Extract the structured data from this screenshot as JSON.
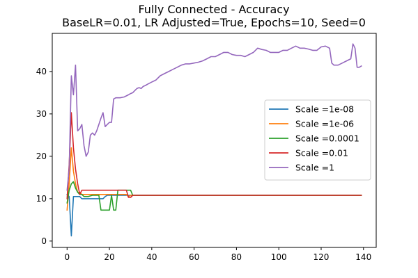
{
  "chart_data": {
    "type": "line",
    "title": "Fully Connected - Accuracy",
    "subtitle": "BaseLR=0.01, LR Adjusted=True, Epochs=10, Seed=0",
    "xlabel": "",
    "ylabel": "",
    "xlim": [
      -7,
      146
    ],
    "ylim": [
      -1.5,
      49
    ],
    "xticks": [
      0,
      20,
      40,
      60,
      80,
      100,
      120,
      140
    ],
    "yticks": [
      0,
      10,
      20,
      30,
      40
    ],
    "grid": false,
    "legend_position": "center-right",
    "series": [
      {
        "name": "Scale =1e-08",
        "color": "#1f77b4",
        "x": [
          0,
          1,
          2,
          3,
          4,
          5,
          6,
          7,
          8,
          10,
          12,
          14,
          16,
          17,
          18,
          19,
          20,
          22,
          24,
          26,
          28,
          30,
          40,
          60,
          80,
          100,
          120,
          139
        ],
        "y": [
          11,
          10.5,
          1.2,
          10.5,
          10.5,
          10.5,
          10.5,
          10.0,
          10.0,
          10.0,
          10.0,
          10.0,
          10.0,
          10.0,
          10.5,
          10.8,
          10.8,
          10.8,
          10.8,
          10.8,
          10.8,
          10.8,
          10.8,
          10.8,
          10.8,
          10.8,
          10.8,
          10.8
        ]
      },
      {
        "name": "Scale =1e-06",
        "color": "#ff7f0e",
        "x": [
          0,
          1,
          2,
          3,
          4,
          5,
          6,
          7,
          8,
          10,
          12,
          14,
          16,
          18,
          20,
          22,
          24,
          26,
          28,
          29,
          30,
          40,
          60,
          80,
          100,
          120,
          139
        ],
        "y": [
          7.3,
          13.5,
          22.0,
          16.5,
          13.5,
          11.5,
          11.5,
          11.0,
          11.0,
          11.0,
          11.0,
          11.0,
          11.0,
          11.0,
          11.0,
          11.0,
          11.0,
          11.0,
          11.0,
          10.5,
          10.8,
          10.8,
          10.8,
          10.8,
          10.8,
          10.8,
          10.8
        ]
      },
      {
        "name": "Scale =0.0001",
        "color": "#2ca02c",
        "x": [
          0,
          1,
          2,
          3,
          4,
          5,
          6,
          7,
          8,
          10,
          12,
          14,
          15,
          16,
          18,
          19,
          20,
          21,
          22,
          23,
          24,
          25,
          26,
          28,
          29,
          30,
          31,
          40,
          60,
          80,
          100,
          120,
          139
        ],
        "y": [
          9.0,
          12.0,
          13.5,
          14.0,
          12.5,
          11.5,
          11.0,
          11.0,
          10.5,
          10.5,
          10.8,
          10.8,
          10.8,
          7.3,
          7.3,
          7.3,
          7.3,
          10.8,
          7.3,
          7.3,
          12.0,
          12.0,
          12.0,
          12.0,
          12.0,
          12.0,
          10.8,
          10.8,
          10.8,
          10.8,
          10.8,
          10.8,
          10.8
        ]
      },
      {
        "name": "Scale =0.01",
        "color": "#d62728",
        "x": [
          0,
          1,
          2,
          3,
          4,
          5,
          6,
          7,
          8,
          10,
          12,
          14,
          16,
          18,
          20,
          22,
          24,
          26,
          28,
          29,
          30,
          31,
          40,
          60,
          80,
          100,
          120,
          139
        ],
        "y": [
          10.0,
          18.0,
          30.3,
          22.0,
          17.0,
          13.5,
          11.0,
          12.0,
          12.0,
          12.0,
          12.0,
          12.0,
          12.0,
          12.0,
          12.0,
          12.0,
          12.0,
          12.0,
          12.0,
          10.3,
          10.3,
          10.8,
          10.8,
          10.8,
          10.8,
          10.8,
          10.8,
          10.8
        ]
      },
      {
        "name": "Scale =1",
        "color": "#9467bd",
        "x": [
          0,
          1,
          2,
          3,
          4,
          5,
          6,
          7,
          8,
          9,
          10,
          11,
          12,
          13,
          14,
          15,
          16,
          17,
          18,
          19,
          20,
          21,
          22,
          23,
          24,
          25,
          27,
          29,
          30,
          31,
          32,
          33,
          34,
          35,
          36,
          37,
          38,
          40,
          42,
          44,
          46,
          48,
          50,
          52,
          54,
          56,
          58,
          60,
          62,
          64,
          66,
          68,
          70,
          72,
          74,
          76,
          78,
          80,
          82,
          84,
          86,
          88,
          90,
          92,
          94,
          96,
          98,
          100,
          102,
          104,
          106,
          108,
          110,
          112,
          114,
          116,
          118,
          120,
          122,
          124,
          125,
          126,
          127,
          128,
          130,
          132,
          134,
          135,
          136,
          137,
          138,
          139
        ],
        "y": [
          12.0,
          17.0,
          39.0,
          34.5,
          41.5,
          26.0,
          26.5,
          27.5,
          22.5,
          20.0,
          21.0,
          25.0,
          25.5,
          25.0,
          26.0,
          27.5,
          29.0,
          30.3,
          27.0,
          27.5,
          28.0,
          28.0,
          33.5,
          33.8,
          33.8,
          33.8,
          34.0,
          34.5,
          34.8,
          35.0,
          35.5,
          36.0,
          36.2,
          36.0,
          36.5,
          36.7,
          37.0,
          37.5,
          38.0,
          39.0,
          39.5,
          40.0,
          40.5,
          41.0,
          41.5,
          41.8,
          41.8,
          42.0,
          42.2,
          42.5,
          43.0,
          43.5,
          43.5,
          44.0,
          44.5,
          44.5,
          44.0,
          43.8,
          43.8,
          43.5,
          44.0,
          44.5,
          45.5,
          45.2,
          45.0,
          44.5,
          44.5,
          44.5,
          45.0,
          45.0,
          45.5,
          46.0,
          45.5,
          45.5,
          45.3,
          45.0,
          45.0,
          45.8,
          46.0,
          45.5,
          42.0,
          41.5,
          41.5,
          41.5,
          42.0,
          42.5,
          43.0,
          46.5,
          45.5,
          41.0,
          41.0,
          41.3
        ]
      }
    ]
  }
}
